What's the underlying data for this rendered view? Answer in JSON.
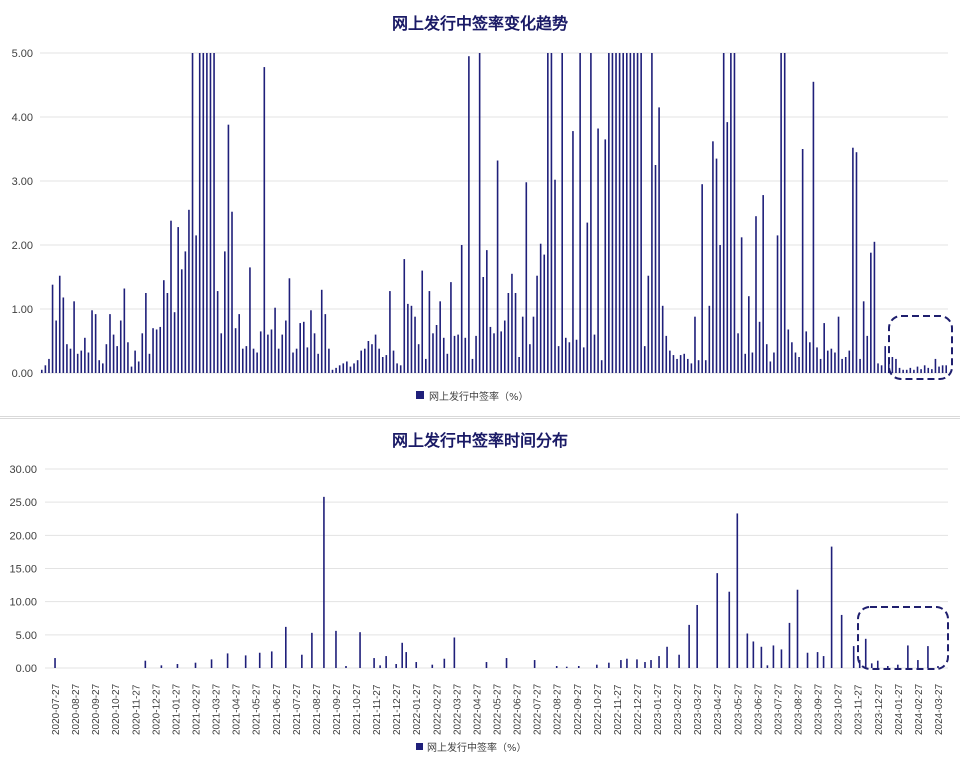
{
  "chart_data": [
    {
      "type": "bar",
      "title": "网上发行中签率变化趋势",
      "legend": "网上发行中签率（%）",
      "legend_position": "bottom",
      "grid": true,
      "ylim": [
        0,
        5
      ],
      "yticks": [
        "0.00",
        "1.00",
        "2.00",
        "3.00",
        "4.00",
        "5.00"
      ],
      "highlight": "dashed rounded box around the last bars (lowest values)",
      "color": "#1f1f7a",
      "values": [
        0.05,
        0.12,
        0.22,
        1.38,
        0.82,
        1.52,
        1.18,
        0.45,
        0.38,
        1.12,
        0.3,
        0.35,
        0.55,
        0.32,
        0.98,
        0.92,
        0.2,
        0.15,
        0.45,
        0.92,
        0.6,
        0.42,
        0.82,
        1.32,
        0.48,
        0.1,
        0.35,
        0.18,
        0.62,
        1.25,
        0.3,
        0.7,
        0.68,
        0.72,
        1.45,
        1.25,
        2.38,
        0.95,
        2.28,
        1.62,
        1.9,
        2.55,
        5.0,
        2.15,
        5.0,
        5.0,
        5.0,
        5.0,
        5.0,
        1.28,
        0.62,
        1.9,
        3.88,
        2.52,
        0.7,
        0.92,
        0.38,
        0.42,
        1.65,
        0.38,
        0.32,
        0.65,
        4.78,
        0.6,
        0.68,
        1.02,
        0.38,
        0.6,
        0.82,
        1.48,
        0.32,
        0.38,
        0.78,
        0.8,
        0.4,
        0.98,
        0.62,
        0.3,
        1.3,
        0.92,
        0.38,
        0.05,
        0.08,
        0.12,
        0.15,
        0.18,
        0.1,
        0.15,
        0.2,
        0.35,
        0.38,
        0.5,
        0.45,
        0.6,
        0.38,
        0.25,
        0.28,
        1.28,
        0.35,
        0.15,
        0.12,
        1.78,
        1.08,
        1.05,
        0.88,
        0.45,
        1.6,
        0.22,
        1.28,
        0.62,
        0.75,
        1.12,
        0.55,
        0.3,
        1.42,
        0.58,
        0.6,
        2.0,
        0.55,
        4.95,
        0.22,
        0.58,
        5.0,
        1.5,
        1.92,
        0.72,
        0.62,
        3.32,
        0.65,
        0.82,
        1.25,
        1.55,
        1.25,
        0.25,
        0.88,
        2.98,
        0.45,
        0.88,
        1.52,
        2.02,
        1.85,
        5.0,
        5.0,
        3.02,
        0.42,
        5.0,
        0.55,
        0.48,
        3.78,
        0.52,
        5.0,
        0.4,
        2.35,
        5.0,
        0.6,
        3.82,
        0.2,
        3.65,
        5.0,
        5.0,
        5.0,
        5.0,
        5.0,
        5.0,
        5.0,
        5.0,
        5.0,
        5.0,
        0.42,
        1.52,
        5.0,
        3.25,
        4.15,
        1.05,
        0.58,
        0.35,
        0.28,
        0.22,
        0.28,
        0.3,
        0.22,
        0.15,
        0.88,
        0.2,
        2.95,
        0.2,
        1.05,
        3.62,
        3.35,
        2.0,
        5.0,
        3.92,
        5.0,
        5.0,
        0.62,
        2.12,
        0.3,
        1.2,
        0.32,
        2.45,
        0.8,
        2.78,
        0.45,
        0.18,
        0.32,
        2.15,
        5.0,
        5.0,
        0.68,
        0.48,
        0.32,
        0.25,
        3.5,
        0.65,
        0.48,
        4.55,
        0.4,
        0.22,
        0.78,
        0.35,
        0.38,
        0.32,
        0.88,
        0.22,
        0.25,
        0.35,
        3.52,
        3.45,
        0.22,
        1.12,
        0.58,
        1.88,
        2.05,
        0.15,
        0.12,
        0.42,
        0.15,
        0.25,
        0.22,
        0.08,
        0.05,
        0.05,
        0.08,
        0.05,
        0.1,
        0.06,
        0.12,
        0.08,
        0.06,
        0.22,
        0.1,
        0.12,
        0.12
      ]
    },
    {
      "type": "bar",
      "title": "网上发行中签率时间分布",
      "legend": "网上发行中签率（%）",
      "legend_position": "bottom",
      "grid": true,
      "ylim": [
        0,
        30
      ],
      "yticks": [
        "0.00",
        "5.00",
        "10.00",
        "15.00",
        "20.00",
        "25.00",
        "30.00"
      ],
      "categories": [
        "2020-07-27",
        "2020-08-27",
        "2020-09-27",
        "2020-10-27",
        "2020-11-27",
        "2020-12-27",
        "2021-01-27",
        "2021-02-27",
        "2021-03-27",
        "2021-04-27",
        "2021-05-27",
        "2021-06-27",
        "2021-07-27",
        "2021-08-27",
        "2021-09-27",
        "2021-10-27",
        "2021-11-27",
        "2021-12-27",
        "2022-01-27",
        "2022-02-27",
        "2022-03-27",
        "2022-04-27",
        "2022-05-27",
        "2022-06-27",
        "2022-07-27",
        "2022-08-27",
        "2022-09-27",
        "2022-10-27",
        "2022-11-27",
        "2022-12-27",
        "2023-01-27",
        "2023-02-27",
        "2023-03-27",
        "2023-04-27",
        "2023-05-27",
        "2023-06-27",
        "2023-07-27",
        "2023-08-27",
        "2023-09-27",
        "2023-10-27",
        "2023-11-27",
        "2023-12-27",
        "2024-01-27",
        "2024-02-27",
        "2024-03-27"
      ],
      "highlight": "dashed rounded box around the last months (lowest values)",
      "color": "#1f1f7a",
      "x": [
        0,
        4.5,
        5.3,
        6.1,
        7.0,
        7.8,
        8.6,
        9.5,
        10.2,
        10.8,
        11.5,
        12.3,
        12.8,
        13.4,
        14.0,
        14.5,
        15.2,
        15.9,
        16.2,
        16.5,
        17.0,
        17.3,
        17.5,
        18.0,
        18.8,
        19.4,
        19.9,
        21.5,
        22.5,
        23.9,
        25.0,
        25.5,
        26.1,
        27.0,
        27.6,
        28.2,
        28.5,
        29.0,
        29.4,
        29.7,
        30.1,
        30.5,
        31.1,
        31.6,
        32.0,
        33.0,
        33.6,
        34.0,
        34.5,
        34.8,
        35.2,
        35.5,
        35.8,
        36.2,
        36.6,
        37.0,
        37.5,
        38.0,
        38.3,
        38.7,
        39.2,
        39.8,
        40.1,
        40.4,
        40.7,
        41.0,
        41.5,
        42.0,
        42.5,
        43.0,
        43.5,
        44.0
      ],
      "values": [
        1.5,
        1.1,
        0.4,
        0.6,
        0.8,
        1.3,
        2.2,
        1.9,
        2.3,
        2.5,
        6.2,
        2.0,
        5.3,
        25.8,
        5.6,
        0.3,
        5.4,
        1.5,
        0.4,
        1.8,
        0.6,
        3.8,
        2.4,
        0.9,
        0.5,
        1.4,
        4.6,
        0.9,
        1.5,
        1.2,
        0.3,
        0.2,
        0.3,
        0.5,
        0.8,
        1.2,
        1.4,
        1.3,
        0.9,
        1.2,
        1.8,
        3.2,
        2.0,
        6.5,
        9.5,
        14.3,
        11.5,
        23.3,
        5.2,
        4.0,
        3.2,
        0.4,
        3.4,
        2.8,
        6.8,
        11.8,
        2.3,
        2.4,
        1.8,
        18.3,
        8.0,
        3.3,
        1.2,
        4.4,
        0.7,
        1.1,
        0.3,
        0.5,
        3.4,
        1.2,
        3.3,
        0.3
      ]
    }
  ]
}
